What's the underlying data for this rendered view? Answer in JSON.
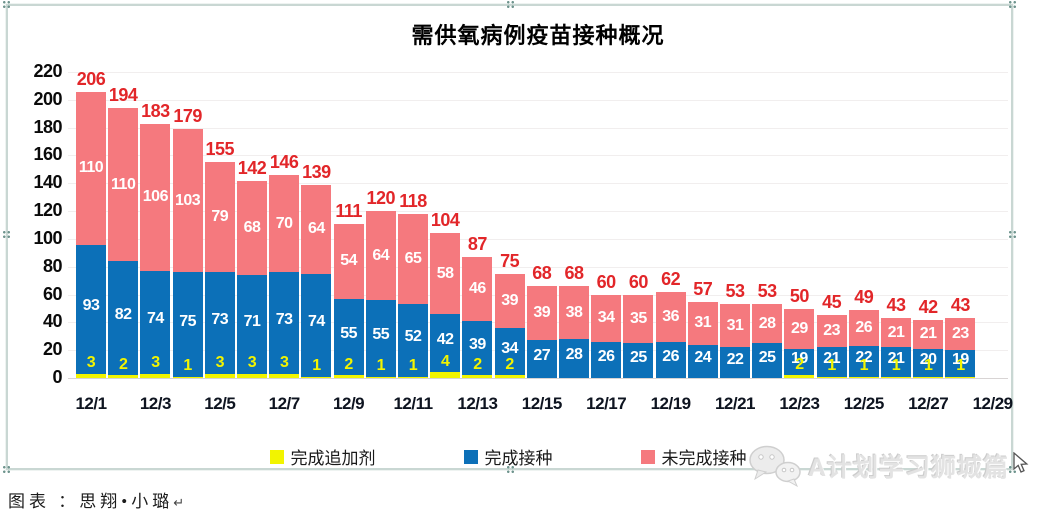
{
  "title": "需供氧病例疫苗接种概况",
  "credit": {
    "label": "图表 ：思翔•小璐",
    "return_mark": "↵"
  },
  "watermark": {
    "text": "A计划学习狮城篇",
    "icon": "wechat-icon"
  },
  "colors": {
    "booster_yellow": "#f2f400",
    "full_blue": "#0c70b8",
    "partial_pink": "#f5797e",
    "total_red": "#e22629",
    "frame_border": "#c9d7d3"
  },
  "chart_data": {
    "type": "bar",
    "stacked": true,
    "title": "需供氧病例疫苗接种概况",
    "categories": [
      "12/1",
      "12/2",
      "12/3",
      "12/4",
      "12/5",
      "12/6",
      "12/7",
      "12/8",
      "12/9",
      "12/10",
      "12/11",
      "12/12",
      "12/13",
      "12/14",
      "12/15",
      "12/16",
      "12/17",
      "12/18",
      "12/19",
      "12/20",
      "12/21",
      "12/22",
      "12/23",
      "12/24",
      "12/25",
      "12/26",
      "12/27",
      "12/28"
    ],
    "x_tick_labels": [
      "12/1",
      "12/3",
      "12/5",
      "12/7",
      "12/9",
      "12/11",
      "12/13",
      "12/15",
      "12/17",
      "12/19",
      "12/21",
      "12/23",
      "12/25",
      "12/27",
      "12/29"
    ],
    "series": [
      {
        "name": "完成追加剂",
        "color": "#f2f400",
        "values": [
          3,
          2,
          3,
          1,
          3,
          3,
          3,
          1,
          2,
          1,
          1,
          4,
          2,
          2,
          null,
          null,
          null,
          null,
          null,
          null,
          null,
          null,
          2,
          1,
          1,
          1,
          1,
          1
        ]
      },
      {
        "name": "完成接种",
        "color": "#0c70b8",
        "values": [
          93,
          82,
          74,
          75,
          73,
          71,
          73,
          74,
          55,
          55,
          52,
          42,
          39,
          34,
          27,
          28,
          26,
          25,
          26,
          24,
          22,
          25,
          19,
          21,
          22,
          21,
          20,
          19
        ]
      },
      {
        "name": "未完成接种",
        "color": "#f5797e",
        "values": [
          110,
          110,
          106,
          103,
          79,
          68,
          70,
          64,
          54,
          64,
          65,
          58,
          46,
          39,
          39,
          38,
          34,
          35,
          36,
          31,
          31,
          28,
          29,
          23,
          26,
          21,
          21,
          23
        ]
      }
    ],
    "totals": [
      206,
      194,
      183,
      179,
      155,
      142,
      146,
      139,
      111,
      120,
      118,
      104,
      87,
      75,
      68,
      68,
      60,
      60,
      62,
      57,
      53,
      53,
      50,
      45,
      49,
      43,
      42,
      43
    ],
    "ylim": [
      0,
      220
    ],
    "y_ticks": [
      0,
      20,
      40,
      60,
      80,
      100,
      120,
      140,
      160,
      180,
      200,
      220
    ],
    "grid": true,
    "legend_position": "bottom"
  }
}
